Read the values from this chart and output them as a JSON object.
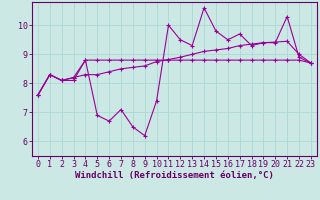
{
  "xlabel": "Windchill (Refroidissement éolien,°C)",
  "bg_color": "#cce8e4",
  "line_color": "#990099",
  "grid_color": "#aad8d4",
  "xlim": [
    -0.5,
    23.5
  ],
  "ylim": [
    5.5,
    10.8
  ],
  "yticks": [
    6,
    7,
    8,
    9,
    10
  ],
  "xticks": [
    0,
    1,
    2,
    3,
    4,
    5,
    6,
    7,
    8,
    9,
    10,
    11,
    12,
    13,
    14,
    15,
    16,
    17,
    18,
    19,
    20,
    21,
    22,
    23
  ],
  "series1_x": [
    0,
    1,
    2,
    3,
    4,
    5,
    6,
    7,
    8,
    9,
    10,
    11,
    12,
    13,
    14,
    15,
    16,
    17,
    18,
    19,
    20,
    21,
    22,
    23
  ],
  "series1_y": [
    7.6,
    8.3,
    8.1,
    8.1,
    8.8,
    6.9,
    6.7,
    7.1,
    6.5,
    6.2,
    7.4,
    10.0,
    9.5,
    9.3,
    10.6,
    9.8,
    9.5,
    9.7,
    9.3,
    9.4,
    9.4,
    10.3,
    8.9,
    8.7
  ],
  "series2_x": [
    0,
    1,
    2,
    3,
    4,
    5,
    6,
    7,
    8,
    9,
    10,
    11,
    12,
    13,
    14,
    15,
    16,
    17,
    18,
    19,
    20,
    21,
    22,
    23
  ],
  "series2_y": [
    7.6,
    8.3,
    8.1,
    8.2,
    8.3,
    8.3,
    8.4,
    8.5,
    8.55,
    8.6,
    8.75,
    8.82,
    8.9,
    9.0,
    9.1,
    9.15,
    9.2,
    9.3,
    9.35,
    9.4,
    9.42,
    9.45,
    9.0,
    8.7
  ],
  "series3_x": [
    0,
    1,
    2,
    3,
    4,
    5,
    6,
    7,
    8,
    9,
    10,
    11,
    12,
    13,
    14,
    15,
    16,
    17,
    18,
    19,
    20,
    21,
    22,
    23
  ],
  "series3_y": [
    7.6,
    8.3,
    8.1,
    8.2,
    8.8,
    8.8,
    8.8,
    8.8,
    8.8,
    8.8,
    8.8,
    8.8,
    8.8,
    8.8,
    8.8,
    8.8,
    8.8,
    8.8,
    8.8,
    8.8,
    8.8,
    8.8,
    8.8,
    8.7
  ],
  "marker": "+",
  "markersize": 3.5,
  "linewidth": 0.8,
  "xlabel_fontsize": 6.5,
  "tick_fontsize": 6,
  "label_color": "#660066"
}
